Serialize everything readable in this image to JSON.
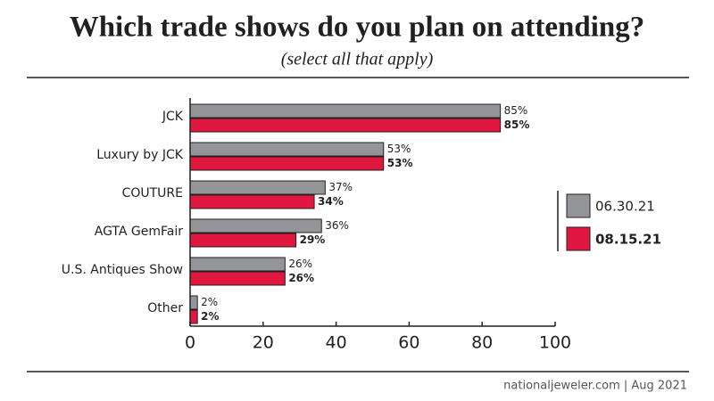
{
  "chart_data": {
    "type": "hbar",
    "title": "Which trade shows do you plan on attending?",
    "subtitle": "(select all that apply)",
    "categories": [
      "JCK",
      "Luxury by JCK",
      "COUTURE",
      "AGTA GemFair",
      "U.S. Antiques Show",
      "Other"
    ],
    "series": [
      {
        "name": "06.30.21",
        "color": "#939598",
        "values": [
          85,
          53,
          37,
          36,
          26,
          2
        ],
        "value_labels": [
          "85%",
          "53%",
          "37%",
          "36%",
          "26%",
          "2%"
        ]
      },
      {
        "name": "08.15.21",
        "color": "#e0173e",
        "values": [
          85,
          53,
          34,
          29,
          26,
          2
        ],
        "value_labels": [
          "85%",
          "53%",
          "34%",
          "29%",
          "26%",
          "2%"
        ]
      }
    ],
    "xlim": [
      0,
      100
    ],
    "xticks": [
      0,
      20,
      40,
      60,
      80,
      100
    ],
    "footer": "nationaljeweler.com  |  Aug 2021"
  }
}
